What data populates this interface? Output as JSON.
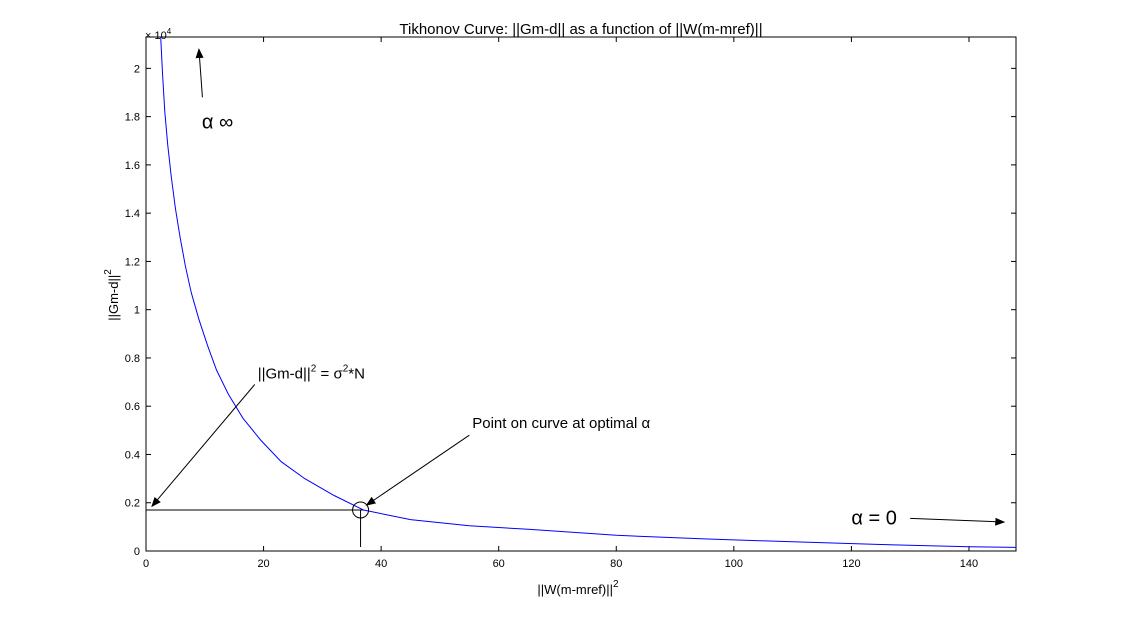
{
  "chart_data": {
    "type": "line",
    "title": "Tikhonov Curve: ||Gm-d|| as a function of ||W(m-mref)||",
    "xlabel": "||W(m-mref)||",
    "xlabel_sup": "2",
    "ylabel": "||Gm-d||",
    "ylabel_sup": "2",
    "xlim": [
      0,
      148
    ],
    "ylim": [
      0,
      21300
    ],
    "x_ticks": [
      0,
      20,
      40,
      60,
      80,
      100,
      120,
      140
    ],
    "x_tick_labels": [
      "0",
      "20",
      "40",
      "60",
      "80",
      "100",
      "120",
      "140"
    ],
    "y_ticks": [
      0,
      2000,
      4000,
      6000,
      8000,
      10000,
      12000,
      14000,
      16000,
      18000,
      20000
    ],
    "y_tick_labels": [
      "0",
      "0.2",
      "0.4",
      "0.6",
      "0.8",
      "1",
      "1.2",
      "1.4",
      "1.6",
      "1.8",
      "2"
    ],
    "y_exponent_label": "× 10",
    "y_exponent_power": "4",
    "grid": false,
    "series": [
      {
        "color": "#0000ff",
        "x": [
          2.5,
          2.8,
          3.2,
          3.7,
          4.3,
          5,
          5.8,
          6.7,
          7.7,
          9,
          10.5,
          12,
          14,
          16.5,
          19.5,
          23,
          27,
          32,
          37,
          45,
          55,
          65,
          80,
          95,
          110,
          125,
          140,
          148
        ],
        "y": [
          21300,
          19800,
          18200,
          16800,
          15500,
          14200,
          13000,
          11800,
          10700,
          9600,
          8500,
          7500,
          6500,
          5500,
          4600,
          3700,
          3000,
          2300,
          1700,
          1300,
          1050,
          900,
          650,
          500,
          380,
          270,
          180,
          150
        ]
      }
    ],
    "reference_line": {
      "y": 1700,
      "x_from": 0,
      "x_to": 37,
      "color": "#000000"
    },
    "optimal_point": {
      "x": 36.5,
      "y": 1700,
      "tick_to_y": 0
    },
    "annotations": {
      "alpha_inf": {
        "text": "α ∞",
        "x": 9.5,
        "y": 17500,
        "arrow_from": [
          9.6,
          18800
        ],
        "arrow_to": [
          9,
          20800
        ]
      },
      "alpha_zero": {
        "text": "α = 0",
        "x": 120,
        "y": 1100,
        "arrow_from": [
          130,
          1350
        ],
        "arrow_to": [
          146,
          1200
        ]
      },
      "misfit": {
        "text_pre": "||Gm-d||",
        "sup1": "2",
        "text_mid": " = σ",
        "sup2": "2",
        "text_post": "*N",
        "x": 19,
        "y": 7150,
        "arrow_from": [
          18.5,
          6900
        ],
        "arrow_to": [
          1,
          1850
        ]
      },
      "optimal": {
        "text": "Point on curve at optimal α",
        "x": 55.5,
        "y": 5100,
        "arrow_from": [
          55,
          4800
        ],
        "arrow_to": [
          37.5,
          1900
        ]
      }
    }
  }
}
